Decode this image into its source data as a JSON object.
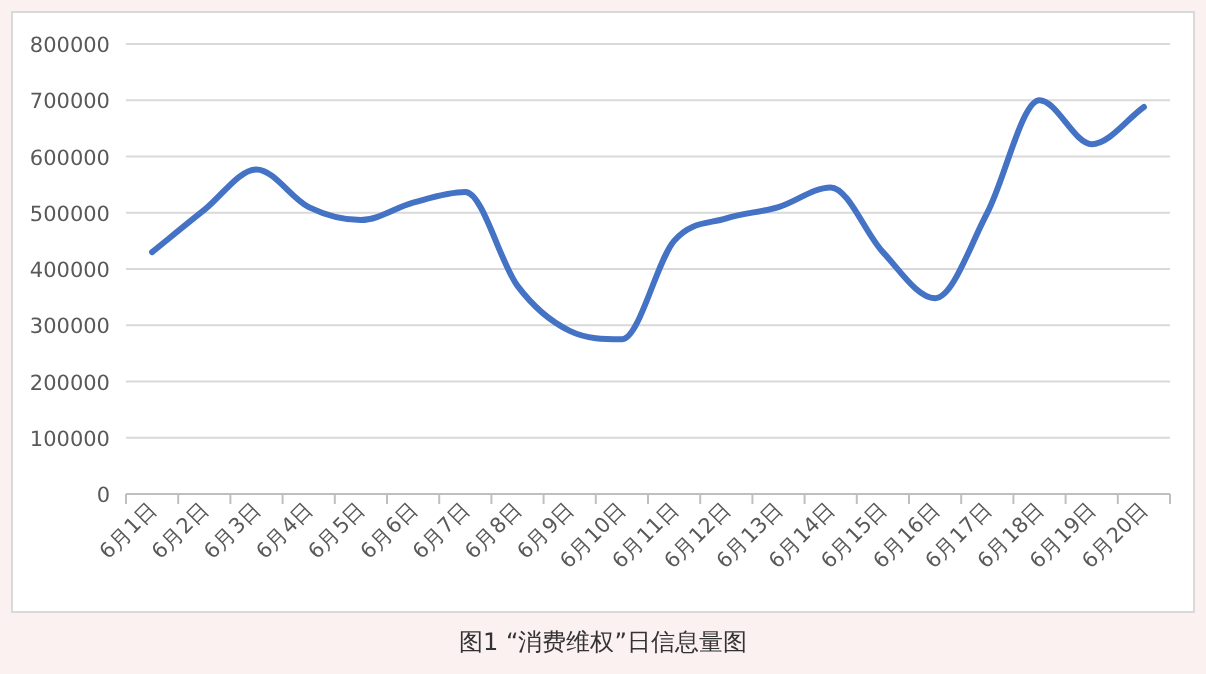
{
  "chart_data": {
    "type": "line",
    "categories": [
      "6月1日",
      "6月2日",
      "6月3日",
      "6月4日",
      "6月5日",
      "6月6日",
      "6月7日",
      "6月8日",
      "6月9日",
      "6月10日",
      "6月11日",
      "6月12日",
      "6月13日",
      "6月14日",
      "6月15日",
      "6月16日",
      "6月17日",
      "6月18日",
      "6月19日",
      "6月20日"
    ],
    "series": [
      {
        "color": "#4472c4",
        "values": [
          430000,
          505000,
          577000,
          510000,
          487000,
          518000,
          537000,
          370000,
          290000,
          275000,
          450000,
          490000,
          510000,
          545000,
          430000,
          348000,
          500000,
          700000,
          622000,
          688000
        ]
      }
    ],
    "ylim": [
      0,
      800000
    ],
    "yticks": [
      0,
      100000,
      200000,
      300000,
      400000,
      500000,
      600000,
      700000,
      800000
    ],
    "grid": "y",
    "marker": "none",
    "line_style": "solid",
    "annotations": [
      "图1 “消费维权”日信息量图"
    ]
  }
}
